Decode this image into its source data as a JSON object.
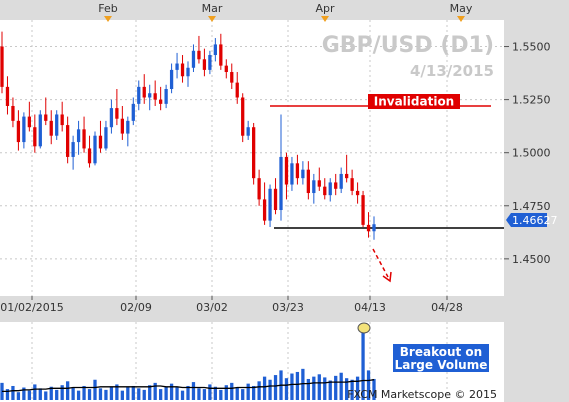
{
  "chart_data": {
    "type": "candlestick",
    "title": "GBP/USD (D1)",
    "subtitle": "4/13/2015",
    "copyright": "FXCM Marketscope © 2015",
    "month_labels": [
      "Feb",
      "Mar",
      "Apr",
      "May"
    ],
    "x_tick_labels": [
      "01/02/2015",
      "02/09",
      "03/02",
      "03/23",
      "04/13",
      "04/28"
    ],
    "y_tick_labels": [
      "1.5500",
      "1.5250",
      "1.5000",
      "1.4750",
      "1.4500"
    ],
    "ylim": [
      1.4325,
      1.5625
    ],
    "current_price": {
      "label": "1.46627",
      "value": 1.46627
    },
    "invalidation": {
      "label": "Invalidation",
      "value": 1.522
    },
    "support": {
      "value": 1.4645
    },
    "annotations": {
      "volume": "Breakout on Large Volume"
    },
    "colors": {
      "up": "#1f5fd4",
      "down": "#e00000",
      "ma": "#000000",
      "invalidation": "#e00000",
      "axis_bg": "#dcdcdc",
      "grid": "#c8c8c8",
      "price_tag": "#1f5fd4",
      "marker": "#f0a020"
    },
    "candles": [
      [
        1.55,
        1.557,
        1.528,
        1.531
      ],
      [
        1.531,
        1.536,
        1.518,
        1.522
      ],
      [
        1.522,
        1.526,
        1.512,
        1.515
      ],
      [
        1.515,
        1.52,
        1.501,
        1.505
      ],
      [
        1.505,
        1.519,
        1.502,
        1.517
      ],
      [
        1.517,
        1.524,
        1.51,
        1.512
      ],
      [
        1.512,
        1.518,
        1.5,
        1.503
      ],
      [
        1.503,
        1.52,
        1.502,
        1.518
      ],
      [
        1.518,
        1.526,
        1.513,
        1.515
      ],
      [
        1.515,
        1.52,
        1.504,
        1.508
      ],
      [
        1.508,
        1.52,
        1.506,
        1.518
      ],
      [
        1.518,
        1.524,
        1.51,
        1.513
      ],
      [
        1.513,
        1.517,
        1.495,
        1.498
      ],
      [
        1.498,
        1.508,
        1.492,
        1.505
      ],
      [
        1.505,
        1.515,
        1.499,
        1.511
      ],
      [
        1.511,
        1.517,
        1.5,
        1.502
      ],
      [
        1.502,
        1.508,
        1.493,
        1.495
      ],
      [
        1.495,
        1.51,
        1.494,
        1.508
      ],
      [
        1.508,
        1.515,
        1.5,
        1.502
      ],
      [
        1.502,
        1.515,
        1.501,
        1.512
      ],
      [
        1.512,
        1.525,
        1.509,
        1.521
      ],
      [
        1.521,
        1.53,
        1.513,
        1.516
      ],
      [
        1.516,
        1.522,
        1.506,
        1.509
      ],
      [
        1.509,
        1.517,
        1.503,
        1.515
      ],
      [
        1.515,
        1.526,
        1.513,
        1.523
      ],
      [
        1.523,
        1.534,
        1.52,
        1.531
      ],
      [
        1.531,
        1.537,
        1.523,
        1.526
      ],
      [
        1.526,
        1.532,
        1.52,
        1.528
      ],
      [
        1.528,
        1.534,
        1.522,
        1.525
      ],
      [
        1.525,
        1.531,
        1.52,
        1.523
      ],
      [
        1.523,
        1.532,
        1.521,
        1.53
      ],
      [
        1.53,
        1.542,
        1.528,
        1.539
      ],
      [
        1.539,
        1.547,
        1.535,
        1.542
      ],
      [
        1.542,
        1.546,
        1.533,
        1.536
      ],
      [
        1.536,
        1.543,
        1.531,
        1.54
      ],
      [
        1.54,
        1.551,
        1.538,
        1.548
      ],
      [
        1.548,
        1.555,
        1.542,
        1.544
      ],
      [
        1.544,
        1.549,
        1.536,
        1.539
      ],
      [
        1.539,
        1.548,
        1.537,
        1.546
      ],
      [
        1.546,
        1.554,
        1.543,
        1.551
      ],
      [
        1.551,
        1.556,
        1.539,
        1.541
      ],
      [
        1.541,
        1.544,
        1.535,
        1.538
      ],
      [
        1.538,
        1.542,
        1.53,
        1.533
      ],
      [
        1.533,
        1.538,
        1.523,
        1.526
      ],
      [
        1.526,
        1.528,
        1.505,
        1.508
      ],
      [
        1.508,
        1.515,
        1.506,
        1.512
      ],
      [
        1.512,
        1.514,
        1.485,
        1.488
      ],
      [
        1.488,
        1.492,
        1.475,
        1.478
      ],
      [
        1.478,
        1.486,
        1.466,
        1.468
      ],
      [
        1.468,
        1.485,
        1.465,
        1.483
      ],
      [
        1.483,
        1.488,
        1.471,
        1.473
      ],
      [
        1.473,
        1.518,
        1.468,
        1.498
      ],
      [
        1.498,
        1.5,
        1.478,
        1.485
      ],
      [
        1.485,
        1.498,
        1.482,
        1.495
      ],
      [
        1.495,
        1.499,
        1.485,
        1.488
      ],
      [
        1.488,
        1.496,
        1.485,
        1.492
      ],
      [
        1.492,
        1.496,
        1.478,
        1.481
      ],
      [
        1.481,
        1.49,
        1.476,
        1.487
      ],
      [
        1.487,
        1.493,
        1.482,
        1.484
      ],
      [
        1.484,
        1.488,
        1.478,
        1.48
      ],
      [
        1.48,
        1.488,
        1.477,
        1.486
      ],
      [
        1.486,
        1.49,
        1.48,
        1.483
      ],
      [
        1.483,
        1.493,
        1.481,
        1.49
      ],
      [
        1.49,
        1.499,
        1.486,
        1.488
      ],
      [
        1.488,
        1.492,
        1.48,
        1.482
      ],
      [
        1.482,
        1.486,
        1.476,
        1.48
      ],
      [
        1.48,
        1.482,
        1.465,
        1.466
      ],
      [
        1.466,
        1.472,
        1.46,
        1.463
      ],
      [
        1.463,
        1.47,
        1.459,
        1.4663
      ]
    ],
    "volume": [
      22,
      14,
      18,
      10,
      16,
      12,
      20,
      15,
      11,
      17,
      13,
      19,
      24,
      16,
      12,
      18,
      14,
      26,
      15,
      13,
      17,
      20,
      12,
      16,
      18,
      15,
      13,
      19,
      22,
      14,
      17,
      21,
      16,
      12,
      18,
      23,
      15,
      14,
      20,
      17,
      13,
      19,
      22,
      16,
      14,
      21,
      18,
      24,
      30,
      26,
      32,
      38,
      28,
      34,
      36,
      40,
      27,
      30,
      33,
      29,
      25,
      31,
      35,
      28,
      26,
      30,
      92,
      38,
      27
    ],
    "volume_ma": [
      11,
      11,
      12,
      12,
      13,
      13,
      14,
      14,
      14,
      15,
      15,
      15,
      15,
      16,
      16,
      16,
      16,
      16,
      17,
      17,
      17,
      17,
      17,
      17,
      17,
      17,
      17,
      17,
      18,
      18,
      17,
      17,
      17,
      16,
      16,
      16,
      16,
      16,
      15,
      15,
      15,
      15,
      15,
      16,
      16,
      16,
      16,
      17,
      17,
      18,
      18,
      19,
      19,
      20,
      20,
      21,
      21,
      22,
      22,
      22,
      23,
      23,
      23,
      23,
      24,
      24,
      25,
      25,
      26
    ]
  }
}
